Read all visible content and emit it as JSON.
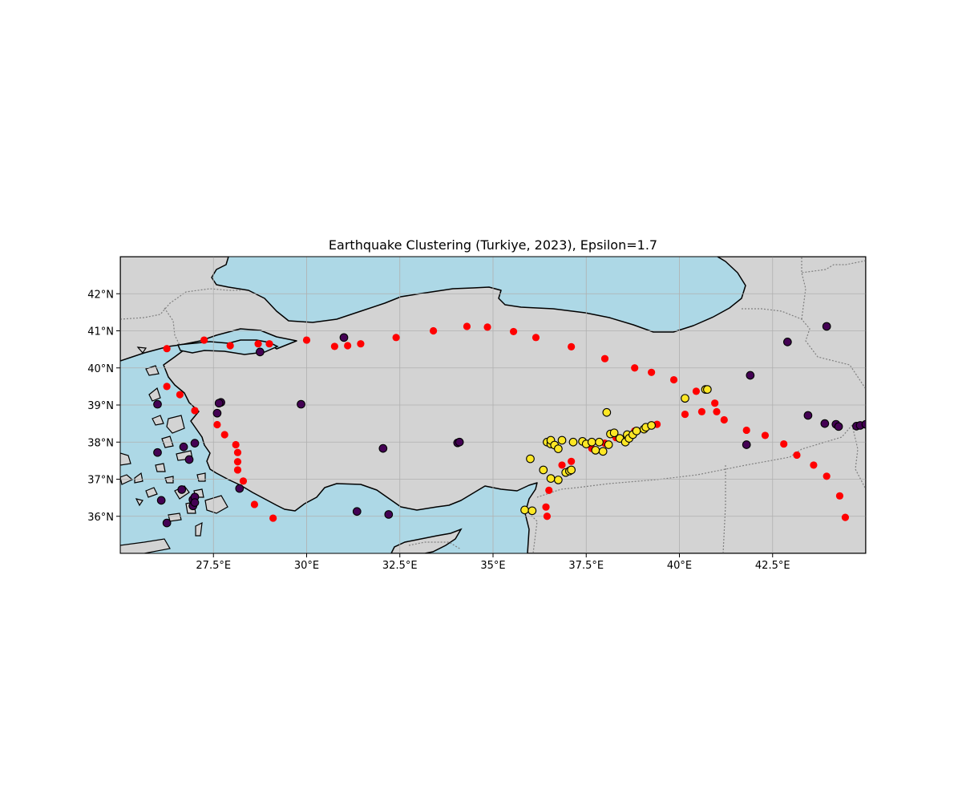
{
  "chart_data": {
    "type": "scatter",
    "title": "Earthquake Clustering (Turkiye, 2023), Epsilon=1.7",
    "projection": "plate-carree",
    "xlim": [
      25,
      45
    ],
    "ylim": [
      35,
      43
    ],
    "grid": true,
    "legend": "none",
    "x_ticks": [
      27.5,
      30,
      32.5,
      35,
      37.5,
      40,
      42.5
    ],
    "x_tick_labels": [
      "27.5°E",
      "30°E",
      "32.5°E",
      "35°E",
      "37.5°E",
      "40°E",
      "42.5°E"
    ],
    "y_ticks": [
      36,
      37,
      38,
      39,
      40,
      41,
      42
    ],
    "y_tick_labels": [
      "36°N",
      "37°N",
      "38°N",
      "39°N",
      "40°N",
      "41°N",
      "42°N"
    ],
    "colors": {
      "land": "#d3d3d3",
      "sea": "#add8e6",
      "coastline": "#000000",
      "border": "#808080",
      "grid": "#b0b0b0",
      "cluster_noise": "#ff0000",
      "cluster_0": "#440154",
      "cluster_1": "#fde725"
    },
    "series": [
      {
        "cluster": "noise",
        "color": "#ff0000",
        "points": [
          [
            26.25,
            40.52
          ],
          [
            27.25,
            40.75
          ],
          [
            27.95,
            40.6
          ],
          [
            28.7,
            40.65
          ],
          [
            29.0,
            40.65
          ],
          [
            30.0,
            40.75
          ],
          [
            30.75,
            40.58
          ],
          [
            31.1,
            40.6
          ],
          [
            31.45,
            40.65
          ],
          [
            32.4,
            40.82
          ],
          [
            33.4,
            41.0
          ],
          [
            34.3,
            41.12
          ],
          [
            34.85,
            41.1
          ],
          [
            35.55,
            40.98
          ],
          [
            36.15,
            40.82
          ],
          [
            37.1,
            40.57
          ],
          [
            38.0,
            40.25
          ],
          [
            38.8,
            40.0
          ],
          [
            39.25,
            39.88
          ],
          [
            39.85,
            39.68
          ],
          [
            40.45,
            39.37
          ],
          [
            40.95,
            39.05
          ],
          [
            40.15,
            38.75
          ],
          [
            40.6,
            38.82
          ],
          [
            41.0,
            38.82
          ],
          [
            41.2,
            38.6
          ],
          [
            41.8,
            38.32
          ],
          [
            42.3,
            38.18
          ],
          [
            42.8,
            37.95
          ],
          [
            43.15,
            37.65
          ],
          [
            43.6,
            37.38
          ],
          [
            43.95,
            37.08
          ],
          [
            44.3,
            36.55
          ],
          [
            44.45,
            35.97
          ],
          [
            26.25,
            39.5
          ],
          [
            26.6,
            39.28
          ],
          [
            27.0,
            38.85
          ],
          [
            27.6,
            38.47
          ],
          [
            27.8,
            38.2
          ],
          [
            28.1,
            37.93
          ],
          [
            28.15,
            37.72
          ],
          [
            28.15,
            37.47
          ],
          [
            28.15,
            37.25
          ],
          [
            28.3,
            36.95
          ],
          [
            28.6,
            36.32
          ],
          [
            29.1,
            35.95
          ],
          [
            36.5,
            36.7
          ],
          [
            36.42,
            36.25
          ],
          [
            36.45,
            36.0
          ],
          [
            36.85,
            37.38
          ],
          [
            37.1,
            37.48
          ],
          [
            37.65,
            37.83
          ],
          [
            38.0,
            37.97
          ],
          [
            38.3,
            38.12
          ],
          [
            38.8,
            38.3
          ],
          [
            39.4,
            38.48
          ]
        ]
      },
      {
        "cluster": "0",
        "color": "#440154",
        "points": [
          [
            31.0,
            40.82
          ],
          [
            28.75,
            40.43
          ],
          [
            26.0,
            39.02
          ],
          [
            27.7,
            39.07
          ],
          [
            27.65,
            39.05
          ],
          [
            27.6,
            38.78
          ],
          [
            29.85,
            39.02
          ],
          [
            27.0,
            37.97
          ],
          [
            26.0,
            37.72
          ],
          [
            26.7,
            37.87
          ],
          [
            26.85,
            37.53
          ],
          [
            26.1,
            36.43
          ],
          [
            26.65,
            36.72
          ],
          [
            26.95,
            36.45
          ],
          [
            26.95,
            36.28
          ],
          [
            27.0,
            36.52
          ],
          [
            27.0,
            36.37
          ],
          [
            26.25,
            35.82
          ],
          [
            28.2,
            36.75
          ],
          [
            31.35,
            36.13
          ],
          [
            32.2,
            36.05
          ],
          [
            32.05,
            37.83
          ],
          [
            34.05,
            37.98
          ],
          [
            34.1,
            38.0
          ],
          [
            41.9,
            39.8
          ],
          [
            42.9,
            40.7
          ],
          [
            43.95,
            41.12
          ],
          [
            43.45,
            38.72
          ],
          [
            43.9,
            38.5
          ],
          [
            44.2,
            38.48
          ],
          [
            44.27,
            38.42
          ],
          [
            41.8,
            37.93
          ],
          [
            44.75,
            38.43
          ],
          [
            44.85,
            38.45
          ],
          [
            45.0,
            38.48
          ]
        ]
      },
      {
        "cluster": "1",
        "color": "#fde725",
        "points": [
          [
            40.7,
            39.42
          ],
          [
            40.75,
            39.42
          ],
          [
            40.15,
            39.18
          ],
          [
            38.05,
            38.8
          ],
          [
            36.0,
            37.55
          ],
          [
            35.85,
            36.17
          ],
          [
            36.05,
            36.15
          ],
          [
            36.35,
            37.25
          ],
          [
            36.55,
            37.02
          ],
          [
            36.75,
            36.98
          ],
          [
            36.95,
            37.18
          ],
          [
            37.05,
            37.22
          ],
          [
            37.1,
            37.25
          ],
          [
            36.45,
            38.0
          ],
          [
            36.55,
            37.95
          ],
          [
            36.55,
            38.05
          ],
          [
            36.65,
            37.92
          ],
          [
            36.75,
            37.82
          ],
          [
            36.85,
            38.05
          ],
          [
            37.15,
            38.0
          ],
          [
            37.4,
            38.02
          ],
          [
            37.5,
            37.95
          ],
          [
            37.65,
            38.0
          ],
          [
            37.75,
            37.78
          ],
          [
            37.85,
            38.0
          ],
          [
            37.95,
            37.75
          ],
          [
            38.1,
            37.93
          ],
          [
            38.15,
            38.22
          ],
          [
            38.25,
            38.25
          ],
          [
            38.4,
            38.1
          ],
          [
            38.55,
            38.0
          ],
          [
            38.6,
            38.2
          ],
          [
            38.65,
            38.1
          ],
          [
            38.75,
            38.2
          ],
          [
            38.85,
            38.3
          ],
          [
            39.05,
            38.35
          ],
          [
            39.1,
            38.4
          ],
          [
            39.25,
            38.45
          ]
        ]
      }
    ]
  }
}
